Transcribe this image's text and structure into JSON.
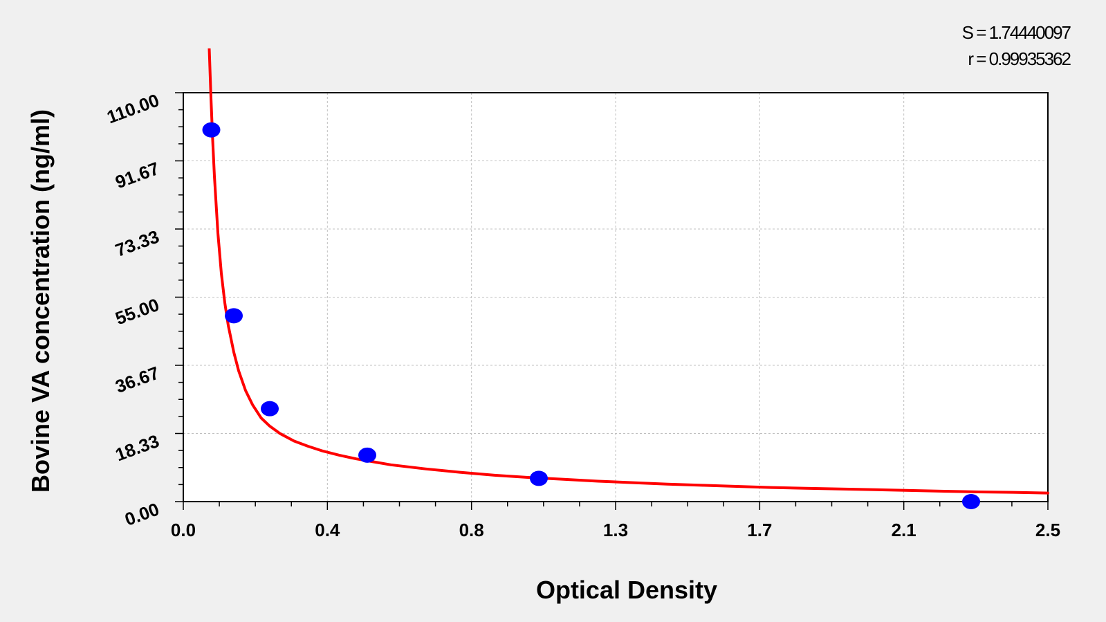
{
  "stats": {
    "s_label": "S = 1.74440097",
    "r_label": "r = 0.99935362"
  },
  "colors": {
    "background": "#f0f0f0",
    "plot_background": "#ffffff",
    "curve": "#ff0000",
    "points": "#0000ff",
    "grid": "#c0c0c0"
  },
  "chart_data": {
    "type": "scatter",
    "title": "",
    "xlabel": "Optical Density",
    "ylabel": "Bovine VA concentration (ng/ml)",
    "xlim": [
      0.0,
      2.5
    ],
    "ylim": [
      0.0,
      110.0
    ],
    "x_ticks": [
      "0.0",
      "0.4",
      "0.8",
      "1.3",
      "1.7",
      "2.1",
      "2.5"
    ],
    "y_ticks": [
      "0.00",
      "18.33",
      "36.67",
      "55.00",
      "73.33",
      "91.67",
      "110.00"
    ],
    "grid": true,
    "legend": "none",
    "series": [
      {
        "kind": "points",
        "x": [
          0.081,
          0.146,
          0.25,
          0.532,
          1.028,
          2.278
        ],
        "y": [
          100,
          50,
          25,
          12.5,
          6.25,
          0
        ]
      },
      {
        "kind": "fitted-curve",
        "x": [
          0.075,
          0.08,
          0.085,
          0.09,
          0.1,
          0.11,
          0.12,
          0.13,
          0.146,
          0.16,
          0.18,
          0.2,
          0.225,
          0.25,
          0.28,
          0.32,
          0.36,
          0.4,
          0.45,
          0.5,
          0.55,
          0.6,
          0.7,
          0.8,
          0.9,
          1.0,
          1.1,
          1.2,
          1.3,
          1.4,
          1.5,
          1.6,
          1.7,
          1.8,
          1.9,
          2.0,
          2.1,
          2.2,
          2.3,
          2.4,
          2.5
        ],
        "y": [
          121.9,
          108.6,
          97.2,
          87.5,
          72.3,
          61.4,
          53.5,
          47.4,
          40.2,
          35.2,
          29.9,
          26.1,
          22.5,
          20.3,
          18.3,
          16.3,
          14.9,
          13.7,
          12.5,
          11.5,
          10.7,
          9.9,
          8.8,
          7.9,
          7.1,
          6.5,
          6.0,
          5.5,
          5.1,
          4.7,
          4.4,
          4.1,
          3.8,
          3.6,
          3.4,
          3.2,
          3.0,
          2.8,
          2.6,
          2.5,
          2.3
        ]
      }
    ]
  }
}
